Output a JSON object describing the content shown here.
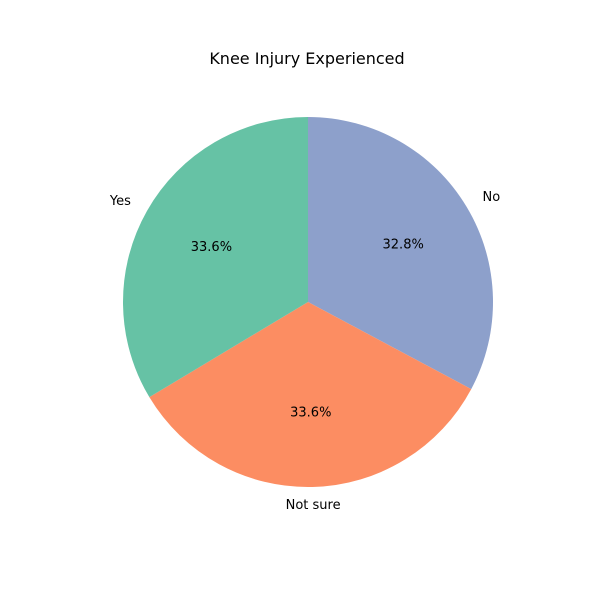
{
  "chart_data": {
    "type": "pie",
    "title": "Knee Injury Experienced",
    "slices": [
      {
        "label": "No",
        "value": 32.8,
        "pct_label": "32.8%",
        "color": "#8da0cb"
      },
      {
        "label": "Not sure",
        "value": 33.6,
        "pct_label": "33.6%",
        "color": "#fc8d62"
      },
      {
        "label": "Yes",
        "value": 33.6,
        "pct_label": "33.6%",
        "color": "#66c2a5"
      }
    ],
    "start_angle_deg": 90,
    "direction": "clockwise",
    "legend": "none"
  }
}
